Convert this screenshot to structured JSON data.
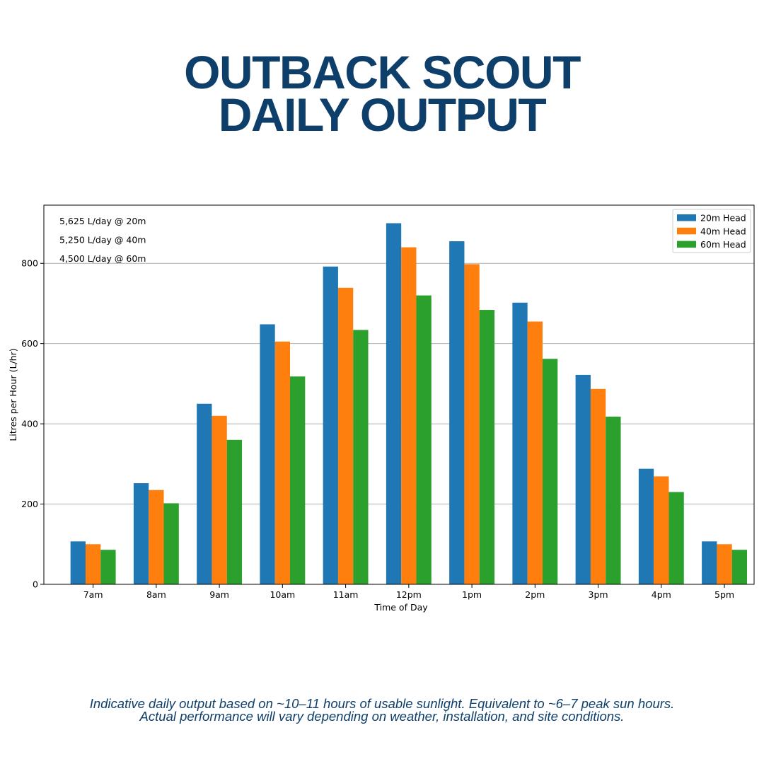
{
  "header": {
    "title_line1": "OUTBACK SCOUT",
    "title_line2": "DAILY OUTPUT"
  },
  "footer": {
    "line1": "Indicative daily output based on ~10–11 hours of usable sunlight. Equivalent to ~6–7 peak sun hours.",
    "line2": "Actual performance will vary depending on weather, installation, and site conditions."
  },
  "chart_data": {
    "type": "bar",
    "title": "",
    "xlabel": "Time of Day",
    "ylabel": "Litres per Hour (L/hr)",
    "categories": [
      "7am",
      "8am",
      "9am",
      "10am",
      "11am",
      "12pm",
      "1pm",
      "2pm",
      "3pm",
      "4pm",
      "5pm"
    ],
    "series": [
      {
        "name": "20m Head",
        "color": "#1f77b4",
        "values": [
          107,
          252,
          450,
          648,
          792,
          900,
          855,
          702,
          522,
          288,
          107
        ]
      },
      {
        "name": "40m Head",
        "color": "#ff7f0e",
        "values": [
          100,
          235,
          420,
          605,
          739,
          840,
          798,
          655,
          487,
          269,
          100
        ]
      },
      {
        "name": "60m Head",
        "color": "#2ca02c",
        "values": [
          86,
          202,
          360,
          518,
          634,
          720,
          684,
          562,
          418,
          230,
          86
        ]
      }
    ],
    "ylim": [
      0,
      945
    ],
    "yticks": [
      0,
      200,
      400,
      600,
      800
    ],
    "grid": "y",
    "legend_position": "top-right",
    "annotations": [
      "5,625 L/day @ 20m",
      "5,250 L/day @ 40m",
      "4,500 L/day @ 60m"
    ]
  }
}
